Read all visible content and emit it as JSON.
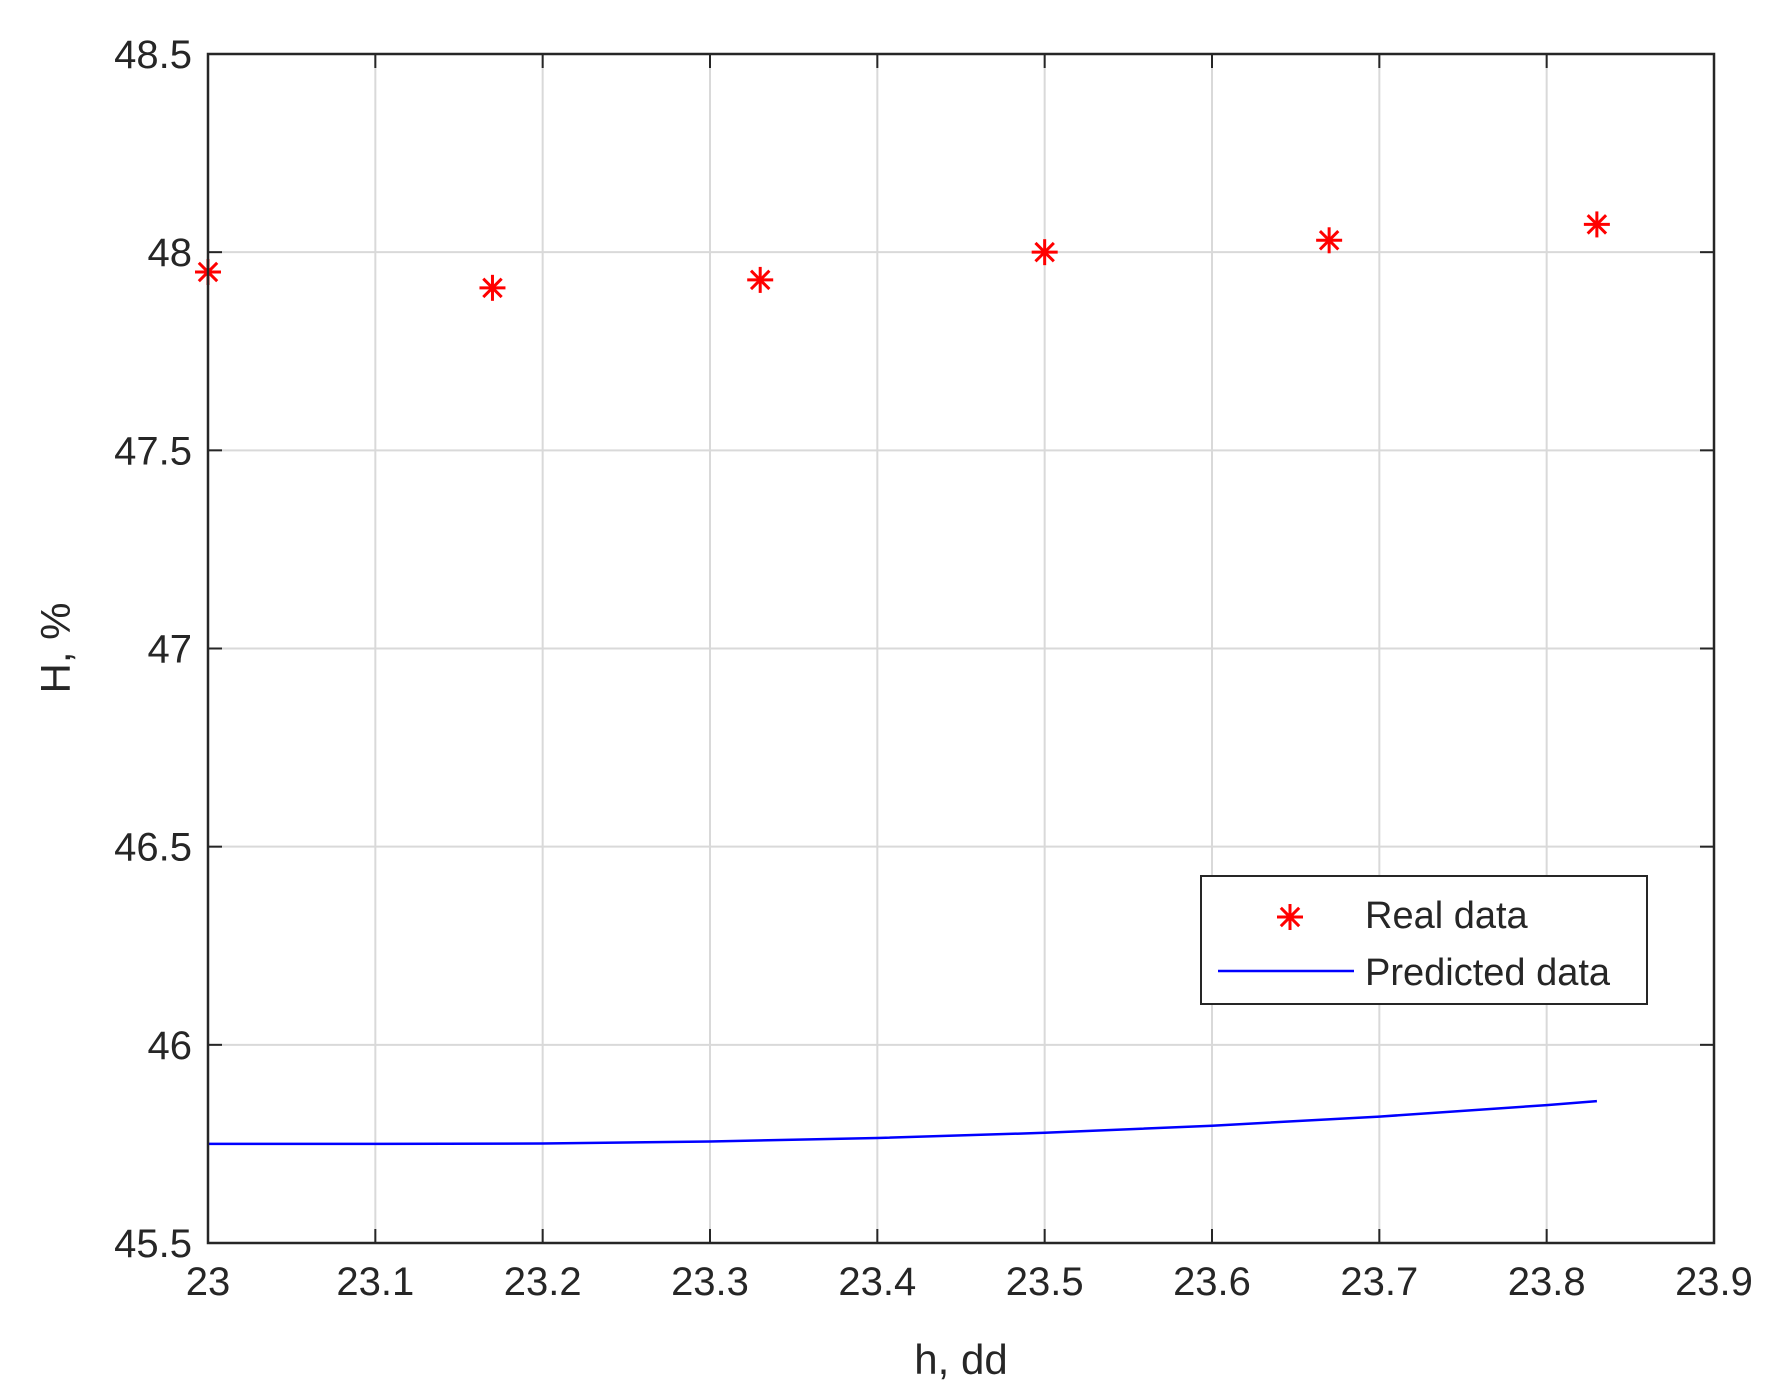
{
  "chart_data": {
    "type": "line",
    "xlabel": "h, dd",
    "ylabel": "H, %",
    "xlim": [
      23,
      23.9
    ],
    "ylim": [
      45.5,
      48.5
    ],
    "xticks": [
      23,
      23.1,
      23.2,
      23.3,
      23.4,
      23.5,
      23.6,
      23.7,
      23.8,
      23.9
    ],
    "yticks": [
      45.5,
      46,
      46.5,
      47,
      47.5,
      48,
      48.5
    ],
    "xtick_labels": [
      "23",
      "23.1",
      "23.2",
      "23.3",
      "23.4",
      "23.5",
      "23.6",
      "23.7",
      "23.8",
      "23.9"
    ],
    "ytick_labels": [
      "45.5",
      "46",
      "46.5",
      "47",
      "47.5",
      "48",
      "48.5"
    ],
    "grid": true,
    "legend_position": "lower-right",
    "series": [
      {
        "name": "Real data",
        "kind": "scatter",
        "marker": "asterisk",
        "color": "#ff0000",
        "x": [
          23.0,
          23.17,
          23.33,
          23.5,
          23.67,
          23.83
        ],
        "y": [
          47.95,
          47.91,
          47.93,
          48.0,
          48.03,
          48.07
        ]
      },
      {
        "name": "Predicted data",
        "kind": "line",
        "color": "#0000ff",
        "x": [
          23.0,
          23.1,
          23.2,
          23.3,
          23.4,
          23.5,
          23.6,
          23.7,
          23.8,
          23.83
        ],
        "y": [
          45.75,
          45.75,
          45.751,
          45.756,
          45.765,
          45.778,
          45.796,
          45.819,
          45.848,
          45.858
        ]
      }
    ]
  }
}
